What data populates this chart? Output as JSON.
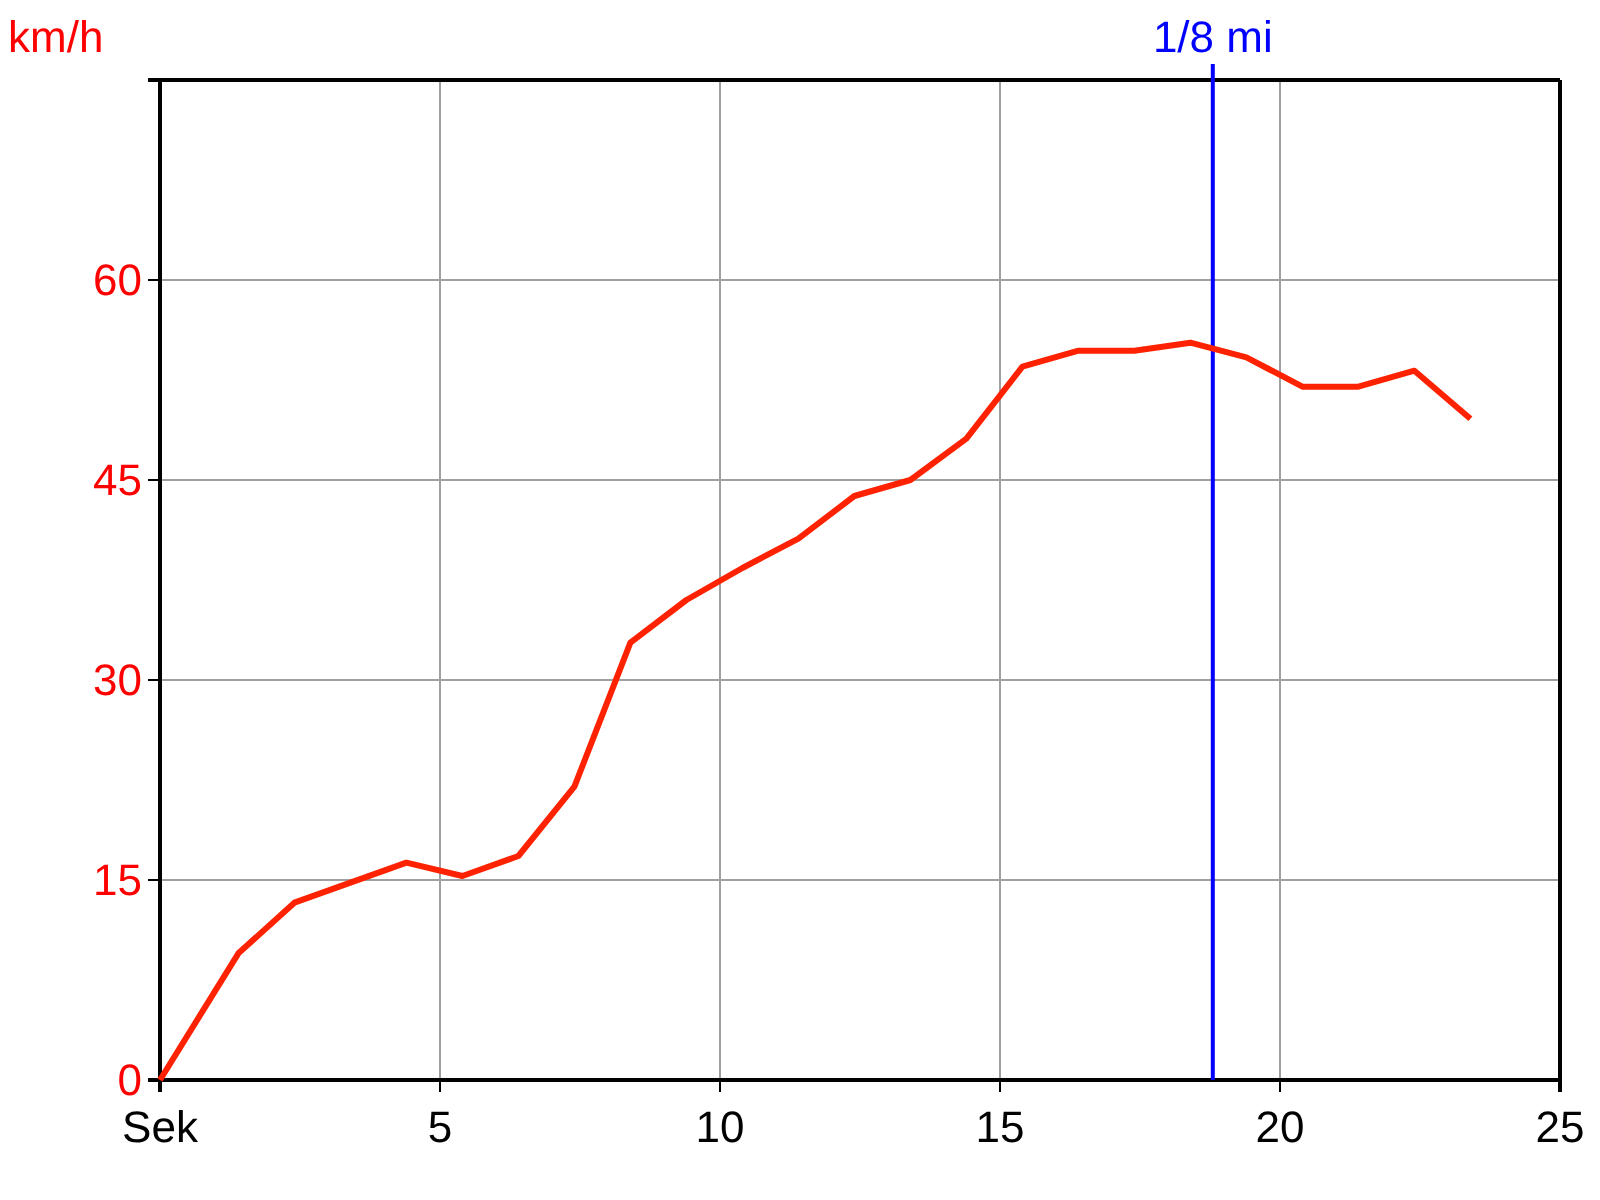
{
  "chart_data": {
    "type": "line",
    "ylabel": "km/h",
    "x": [
      0,
      1.4,
      2.4,
      3.4,
      4.4,
      5.4,
      6.4,
      7.4,
      8.4,
      9.4,
      10.4,
      11.4,
      12.4,
      13.4,
      14.4,
      15.4,
      16.4,
      17.4,
      18.4,
      19.4,
      20.4,
      21.4,
      22.4,
      23.4
    ],
    "series": [
      {
        "color": "#ff2200",
        "values": [
          0,
          9.5,
          13.3,
          14.8,
          16.3,
          15.3,
          16.8,
          22,
          32.8,
          36,
          38.4,
          40.6,
          43.8,
          45,
          48.1,
          53.5,
          54.7,
          54.7,
          55.3,
          54.2,
          52,
          52,
          53.2,
          49.6
        ]
      }
    ],
    "xlim": [
      0,
      25
    ],
    "xticks": [
      {
        "value": 0,
        "label": "Sek"
      },
      5,
      10,
      15,
      20,
      25
    ],
    "ylim": [
      0,
      75
    ],
    "yticks": [
      0,
      15,
      30,
      45,
      60,
      {
        "value": 75,
        "label": null
      }
    ],
    "grid": true,
    "marker": "none",
    "line_style": "solid",
    "ref_lines": [
      {
        "axis": "x",
        "value": 18.8,
        "label": "1/8 mi",
        "color": "#0000ff"
      }
    ]
  }
}
